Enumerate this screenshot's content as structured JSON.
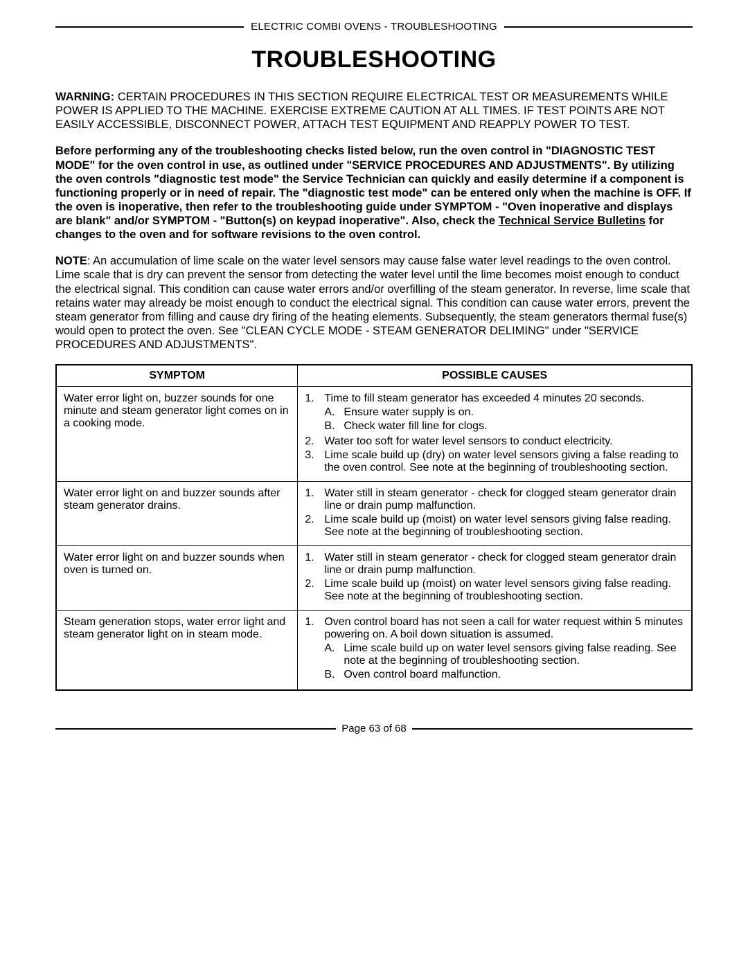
{
  "header": {
    "running_head": "ELECTRIC COMBI OVENS - TROUBLESHOOTING",
    "title": "TROUBLESHOOTING"
  },
  "warning": {
    "label": "WARNING:",
    "text": " CERTAIN PROCEDURES IN THIS SECTION REQUIRE ELECTRICAL TEST OR MEASUREMENTS WHILE POWER IS APPLIED TO THE MACHINE. EXERCISE EXTREME CAUTION AT ALL TIMES. IF TEST POINTS ARE NOT EASILY ACCESSIBLE, DISCONNECT POWER, ATTACH TEST EQUIPMENT AND REAPPLY POWER TO TEST."
  },
  "instructions": {
    "pre": "Before performing any of the troubleshooting checks listed below, run the oven control in \"DIAGNOSTIC TEST MODE\" for the oven control in use, as outlined under \"SERVICE PROCEDURES AND ADJUSTMENTS\". By utilizing the oven controls \"diagnostic test mode\" the Service Technician can quickly and easily determine if a component is functioning properly or in need of repair. The \"diagnostic test mode\" can be entered only when the machine is OFF. If the oven is inoperative, then refer to the troubleshooting guide under SYMPTOM - \"Oven inoperative and displays are blank\" and/or  SYMPTOM - \"Button(s) on keypad inoperative\".  Also, check the ",
    "underlined": "Technical Service Bulletins",
    "post": " for changes to the oven and for software revisions to the oven control."
  },
  "note": {
    "label": "NOTE",
    "text": ": An accumulation of lime scale on the water level sensors may cause false water level readings to the oven control. Lime scale that is dry can prevent the sensor from detecting the water level until the lime becomes moist enough to conduct the electrical signal. This condition can cause water errors and/or overfilling of the steam generator. In reverse, lime scale that retains water may already be moist enough to conduct the electrical signal. This condition can cause water errors, prevent the steam generator from filling and cause dry firing of the heating elements. Subsequently, the steam generators thermal fuse(s) would open to protect the oven. See \"CLEAN CYCLE MODE - STEAM GENERATOR DELIMING\" under \"SERVICE PROCEDURES AND ADJUSTMENTS\"."
  },
  "table": {
    "columns": [
      "SYMPTOM",
      "POSSIBLE CAUSES"
    ],
    "rows": [
      {
        "symptom": "Water error light on, buzzer sounds for one minute and steam generator light comes on in a cooking mode.",
        "causes": [
          {
            "n": "1.",
            "text": "Time to fill steam generator has exceeded 4 minutes 20 seconds.",
            "sub": [
              {
                "l": "A.",
                "t": "Ensure water supply is on."
              },
              {
                "l": "B.",
                "t": "Check water fill line for clogs."
              }
            ]
          },
          {
            "n": "2.",
            "text": "Water too soft for water level sensors to conduct electricity."
          },
          {
            "n": "3.",
            "text": "Lime scale build up (dry) on water level sensors giving a false reading to the oven control. See note at the beginning of troubleshooting section."
          }
        ]
      },
      {
        "symptom": "Water error light on and buzzer sounds after steam generator drains.",
        "causes": [
          {
            "n": "1.",
            "text": "Water still in steam generator - check for clogged steam generator drain line or drain pump malfunction."
          },
          {
            "n": "2.",
            "text": "Lime scale build up (moist) on water level sensors giving false reading. See note at the beginning of troubleshooting section."
          }
        ]
      },
      {
        "symptom": "Water error light on and buzzer sounds when oven is turned on.",
        "causes": [
          {
            "n": "1.",
            "text": "Water still in steam generator - check for clogged steam generator drain line or drain pump malfunction."
          },
          {
            "n": "2.",
            "text": "Lime scale build up (moist) on water level sensors giving false reading. See note at the beginning of troubleshooting section."
          }
        ]
      },
      {
        "symptom": "Steam generation stops, water error light and steam generator light on in steam mode.",
        "causes": [
          {
            "n": "1.",
            "text": "Oven control board has not seen a call for water request within 5 minutes powering on. A boil down situation is assumed.",
            "sub": [
              {
                "l": "A.",
                "t": "Lime scale build up on water level sensors giving false reading. See note at the beginning of troubleshooting section."
              },
              {
                "l": "B.",
                "t": "Oven control board malfunction."
              }
            ]
          }
        ]
      }
    ]
  },
  "footer": {
    "page_label": "Page 63 of  68"
  }
}
